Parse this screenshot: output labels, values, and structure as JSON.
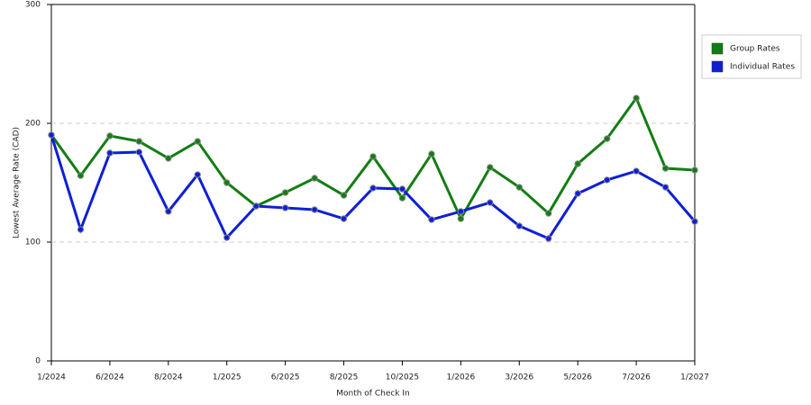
{
  "chart_data": {
    "type": "line",
    "x_label": "Month of Check In",
    "y_label": "Lowest Average Rate (CAD)",
    "categories": [
      "1/2024",
      null,
      "6/2024",
      null,
      "8/2024",
      null,
      "1/2025",
      null,
      "6/2025",
      null,
      "8/2025",
      null,
      "10/2025",
      null,
      "1/2026",
      null,
      "3/2026",
      null,
      "5/2026",
      null,
      "7/2026",
      null,
      "1/2027"
    ],
    "series": [
      {
        "name": "Group Rates",
        "color": "#137d13",
        "values": [
          190.2,
          156,
          189.4,
          184.8,
          170.5,
          184.8,
          150,
          130.3,
          141.7,
          153.8,
          139.4,
          172,
          137.1,
          174.2,
          119.7,
          162.9,
          146.2,
          124.2,
          165.9,
          187.1,
          221.2,
          162.1,
          160.6
        ]
      },
      {
        "name": "Individual Rates",
        "color": "#0f1fd6",
        "values": [
          190.2,
          110.6,
          175,
          175.8,
          125.8,
          156.8,
          103.8,
          130.3,
          128.8,
          127.3,
          119.7,
          145.5,
          144.7,
          118.9,
          125.8,
          133.3,
          113.6,
          103,
          140.9,
          152.3,
          159.8,
          146.2,
          117.4
        ]
      }
    ],
    "ylim": [
      0,
      300
    ],
    "yticks": [
      0,
      100,
      200,
      300
    ],
    "grid": true
  }
}
